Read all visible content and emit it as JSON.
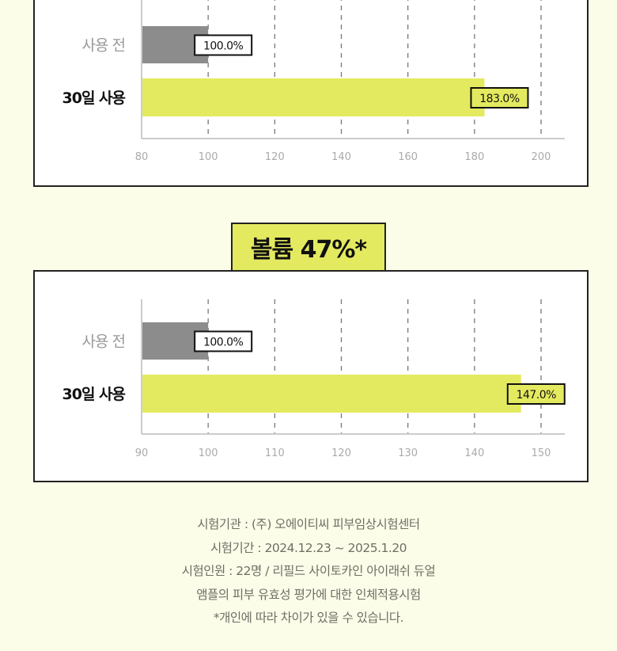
{
  "chart_data": [
    {
      "type": "bar",
      "orientation": "horizontal",
      "categories": [
        "사용 전",
        "30일 사용"
      ],
      "values": [
        100.0,
        183.0
      ],
      "data_labels": [
        "100.0%",
        "183.0%"
      ],
      "xlim": [
        80,
        200
      ],
      "xticks": [
        "80",
        "100",
        "120",
        "140",
        "160",
        "180",
        "200"
      ],
      "grid": "vertical dashed",
      "colors": [
        "#8c8c8c",
        "#e4ea5f"
      ]
    },
    {
      "type": "bar",
      "orientation": "horizontal",
      "title": "볼륨 47%*",
      "categories": [
        "사용 전",
        "30일 사용"
      ],
      "values": [
        100.0,
        147.0
      ],
      "data_labels": [
        "100.0%",
        "147.0%"
      ],
      "xlim": [
        90,
        150
      ],
      "xticks": [
        "90",
        "100",
        "110",
        "120",
        "130",
        "140",
        "150"
      ],
      "grid": "vertical dashed",
      "colors": [
        "#8c8c8c",
        "#e4ea5f"
      ]
    }
  ],
  "notes": [
    "시험기관 : (주) 오에이티씨 피부임상시험센터",
    "시험기간 : 2024.12.23 ~ 2025.1.20",
    "시험인원 :  22명 / 리필드 사이토카인 아이래쉬 듀얼",
    "앰플의 피부 유효성 평가에 대한 인체적용시험",
    "*개인에 따라 차이가 있을 수 있습니다."
  ]
}
